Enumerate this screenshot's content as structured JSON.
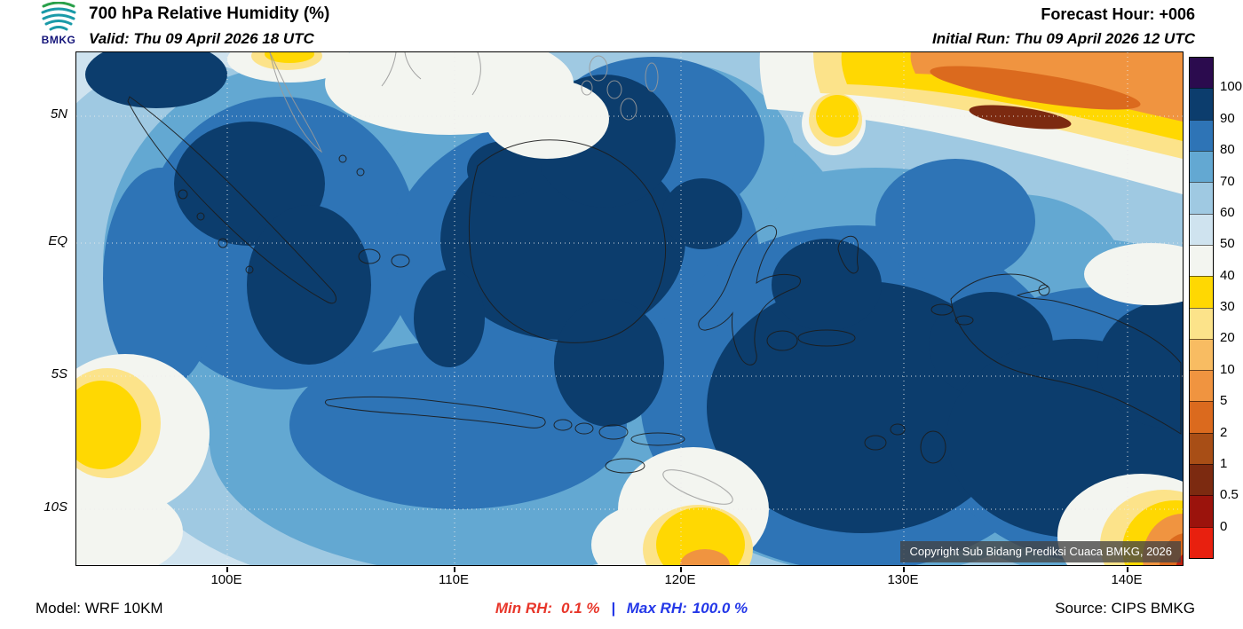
{
  "header": {
    "logo_text": "BMKG",
    "title": "700 hPa Relative Humidity (%)",
    "valid": "Valid: Thu 09 April 2026 18 UTC",
    "forecast_hour": "Forecast Hour: +006",
    "initial_run": "Initial Run: Thu 09 April 2026 12 UTC"
  },
  "map": {
    "copyright": "Copyright Sub Bidang Prediksi Cuaca BMKG, 2026",
    "lat_labels": [
      "5N",
      "EQ",
      "5S",
      "10S"
    ],
    "lon_labels": [
      "100E",
      "110E",
      "120E",
      "130E",
      "140E"
    ]
  },
  "colorbar": {
    "title": "Relative Humidity (%)",
    "boundary_labels": [
      "100",
      "90",
      "80",
      "70",
      "60",
      "50",
      "40",
      "30",
      "20",
      "10",
      "5",
      "2",
      "1",
      "0.5",
      "0"
    ],
    "segment_colors_top_to_bottom": [
      "#2b0b4e",
      "#0c3d6d",
      "#2e74b6",
      "#63a8d2",
      "#9fc9e2",
      "#cfe3ef",
      "#f3f5f0",
      "#ffd802",
      "#fce38a",
      "#f8bc62",
      "#f09440",
      "#db6a1e",
      "#a84e16",
      "#7c2a10",
      "#9b130c",
      "#e8200f"
    ]
  },
  "footer": {
    "model": "Model: WRF 10KM",
    "min_rh_label": "Min RH:",
    "min_rh_value": "0.1 %",
    "divider": "|",
    "max_rh_label": "Max RH:",
    "max_rh_value": "100.0 %",
    "source": "Source: CIPS BMKG",
    "colors": {
      "min_rh": "#e8362a",
      "max_rh": "#2438e8"
    }
  }
}
